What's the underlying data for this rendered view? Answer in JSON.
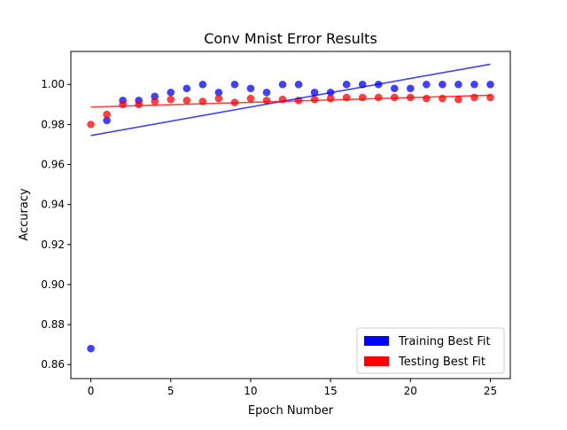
{
  "chart_data": {
    "type": "scatter",
    "title": "Conv Mnist Error Results",
    "xlabel": "Epoch Number",
    "ylabel": "Accuracy",
    "xlim": [
      -1.25,
      26.25
    ],
    "ylim": [
      0.853,
      1.0165
    ],
    "xticks": [
      0,
      5,
      10,
      15,
      20,
      25
    ],
    "xtick_labels": [
      "0",
      "5",
      "10",
      "15",
      "20",
      "25"
    ],
    "yticks": [
      0.86,
      0.88,
      0.9,
      0.92,
      0.94,
      0.96,
      0.98,
      1.0
    ],
    "ytick_labels": [
      "0.86",
      "0.88",
      "0.90",
      "0.92",
      "0.94",
      "0.96",
      "0.98",
      "1.00"
    ],
    "grid": false,
    "legend_position": "bottom-right",
    "series": [
      {
        "name": "Training Best Fit",
        "color": "#0000ff",
        "x": [
          0,
          1,
          2,
          3,
          4,
          5,
          6,
          7,
          8,
          9,
          10,
          11,
          12,
          13,
          14,
          15,
          16,
          17,
          18,
          19,
          20,
          21,
          22,
          23,
          24,
          25
        ],
        "y": [
          0.868,
          0.982,
          0.992,
          0.992,
          0.994,
          0.996,
          0.998,
          1.0,
          0.996,
          1.0,
          0.998,
          0.996,
          1.0,
          1.0,
          0.996,
          0.996,
          1.0,
          1.0,
          1.0,
          0.998,
          0.998,
          1.0,
          1.0,
          1.0,
          1.0,
          1.0
        ],
        "fit": [
          [
            0,
            0.9745
          ],
          [
            25,
            1.0101
          ]
        ]
      },
      {
        "name": "Testing Best Fit",
        "color": "#ff0000",
        "x": [
          0,
          1,
          2,
          3,
          4,
          5,
          6,
          7,
          8,
          9,
          10,
          11,
          12,
          13,
          14,
          15,
          16,
          17,
          18,
          19,
          20,
          21,
          22,
          23,
          24,
          25
        ],
        "y": [
          0.98,
          0.985,
          0.99,
          0.99,
          0.9915,
          0.9925,
          0.992,
          0.9915,
          0.993,
          0.991,
          0.993,
          0.992,
          0.9925,
          0.992,
          0.9925,
          0.993,
          0.9935,
          0.9935,
          0.9935,
          0.9935,
          0.9935,
          0.993,
          0.993,
          0.9925,
          0.9935,
          0.9935
        ],
        "fit": [
          [
            0,
            0.9887
          ],
          [
            25,
            0.9946
          ]
        ]
      }
    ]
  }
}
